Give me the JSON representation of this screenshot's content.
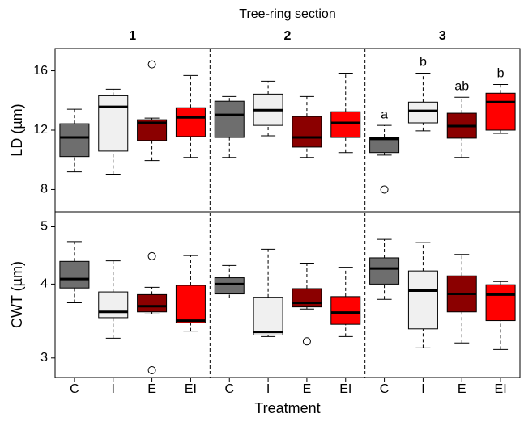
{
  "chart_data": {
    "type": "box",
    "title": "Tree-ring section",
    "xlabel": "Treatment",
    "sections": [
      "1",
      "2",
      "3"
    ],
    "categories": [
      "C",
      "I",
      "E",
      "EI"
    ],
    "colors": [
      "#6e6e6e",
      "#f0f0f0",
      "#8b0000",
      "#ff0000"
    ],
    "panels": [
      {
        "ylabel": "LD (µm)",
        "log": false,
        "ylim": [
          6.5,
          17.5
        ],
        "yticks": [
          8,
          12,
          16
        ],
        "boxes": [
          [
            {
              "low": 9.19,
              "q1": 10.22,
              "median": 11.51,
              "q3": 12.43,
              "high": 13.41,
              "outliers": []
            },
            {
              "low": 9.03,
              "q1": 10.59,
              "median": 13.57,
              "q3": 14.32,
              "high": 14.76,
              "outliers": []
            },
            {
              "low": 9.95,
              "q1": 11.3,
              "median": 12.49,
              "q3": 12.7,
              "high": 12.81,
              "outliers": [
                16.43
              ]
            },
            {
              "low": 10.16,
              "q1": 11.57,
              "median": 12.86,
              "q3": 13.51,
              "high": 15.68,
              "outliers": []
            }
          ],
          [
            {
              "low": 10.16,
              "q1": 11.51,
              "median": 13.03,
              "q3": 13.95,
              "high": 14.27,
              "outliers": []
            },
            {
              "low": 11.62,
              "q1": 12.32,
              "median": 13.35,
              "q3": 14.43,
              "high": 15.3,
              "outliers": []
            },
            {
              "low": 10.16,
              "q1": 10.86,
              "median": 11.51,
              "q3": 12.92,
              "high": 14.27,
              "outliers": []
            },
            {
              "low": 10.49,
              "q1": 11.51,
              "median": 12.49,
              "q3": 13.24,
              "high": 15.84,
              "outliers": []
            }
          ],
          [
            {
              "low": 10.32,
              "q1": 10.49,
              "median": 11.41,
              "q3": 11.51,
              "high": 12.32,
              "outliers": [
                8.0
              ],
              "letter": "a"
            },
            {
              "low": 11.95,
              "q1": 12.49,
              "median": 13.3,
              "q3": 13.89,
              "high": 15.84,
              "outliers": [],
              "letter": "b"
            },
            {
              "low": 10.16,
              "q1": 11.46,
              "median": 12.27,
              "q3": 13.14,
              "high": 14.22,
              "outliers": [],
              "letter": "ab"
            },
            {
              "low": 11.78,
              "q1": 12.0,
              "median": 13.89,
              "q3": 14.49,
              "high": 15.08,
              "outliers": [],
              "letter": "b"
            }
          ]
        ]
      },
      {
        "ylabel": "CWT (µm)",
        "log": true,
        "ylim": [
          2.78,
          5.3
        ],
        "yticks": [
          3,
          4,
          5
        ],
        "boxes": [
          [
            {
              "low": 3.72,
              "q1": 3.94,
              "median": 4.08,
              "q3": 4.37,
              "high": 4.72,
              "outliers": []
            },
            {
              "low": 3.24,
              "q1": 3.51,
              "median": 3.59,
              "q3": 3.88,
              "high": 4.38,
              "outliers": []
            },
            {
              "low": 3.56,
              "q1": 3.59,
              "median": 3.67,
              "q3": 3.84,
              "high": 3.95,
              "outliers": [
                4.46,
                2.86
              ]
            },
            {
              "low": 3.33,
              "q1": 3.44,
              "median": 3.47,
              "q3": 3.98,
              "high": 4.47,
              "outliers": []
            }
          ],
          [
            {
              "low": 3.79,
              "q1": 3.85,
              "median": 4.0,
              "q3": 4.1,
              "high": 4.3,
              "outliers": []
            },
            {
              "low": 3.26,
              "q1": 3.28,
              "median": 3.32,
              "q3": 3.8,
              "high": 4.58,
              "outliers": []
            },
            {
              "low": 3.63,
              "q1": 3.66,
              "median": 3.72,
              "q3": 3.93,
              "high": 4.34,
              "outliers": [
                3.2
              ]
            },
            {
              "low": 3.26,
              "q1": 3.42,
              "median": 3.58,
              "q3": 3.81,
              "high": 4.27,
              "outliers": []
            }
          ],
          [
            {
              "low": 3.77,
              "q1": 4.0,
              "median": 4.25,
              "q3": 4.43,
              "high": 4.76,
              "outliers": []
            },
            {
              "low": 3.12,
              "q1": 3.36,
              "median": 3.9,
              "q3": 4.21,
              "high": 4.7,
              "outliers": []
            },
            {
              "low": 3.18,
              "q1": 3.59,
              "median": 3.85,
              "q3": 4.13,
              "high": 4.49,
              "outliers": []
            },
            {
              "low": 3.1,
              "q1": 3.47,
              "median": 3.84,
              "q3": 3.99,
              "high": 4.04,
              "outliers": []
            }
          ]
        ]
      }
    ]
  }
}
